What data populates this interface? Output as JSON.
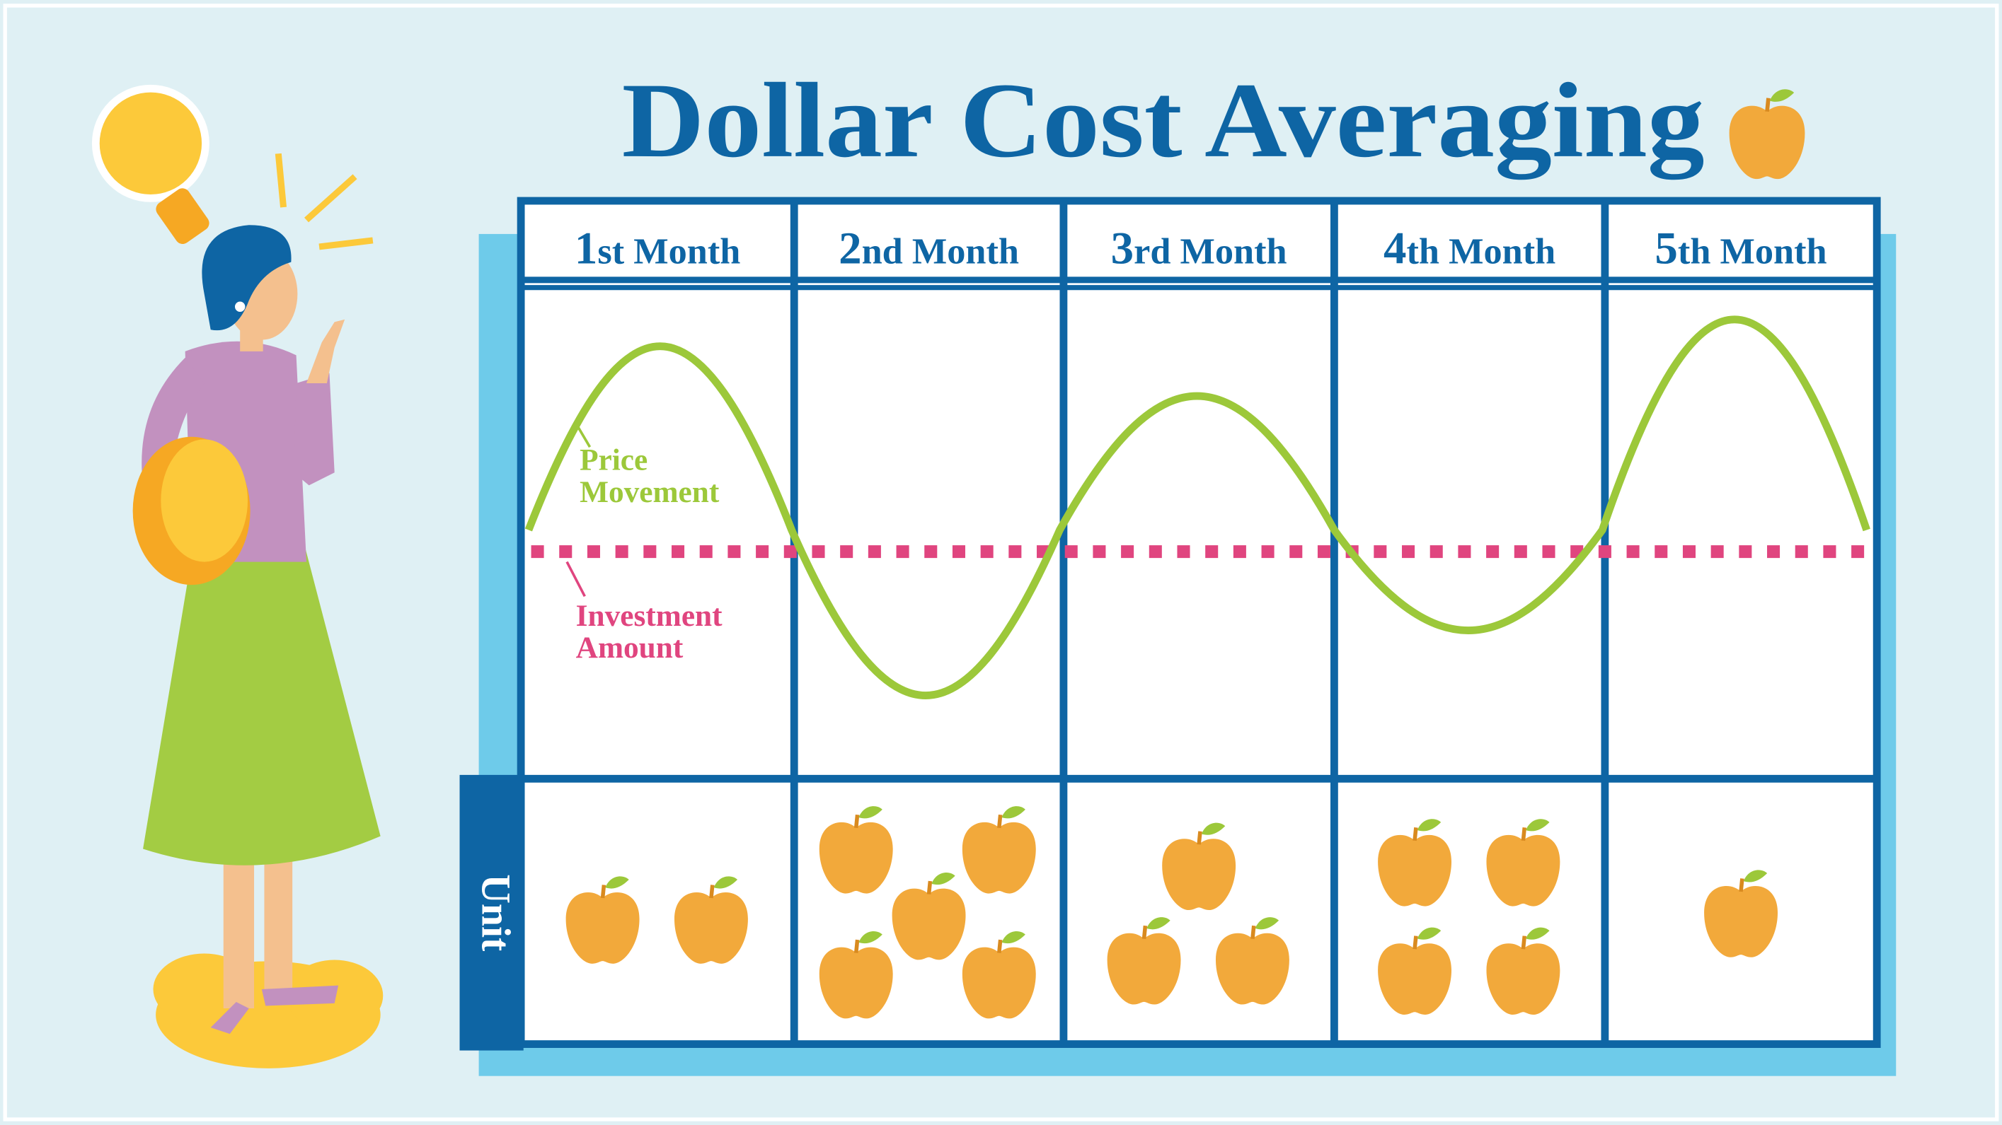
{
  "title": "Dollar Cost Averaging",
  "months": [
    {
      "label": "1st Month",
      "units": 2
    },
    {
      "label": "2nd Month",
      "units": 5
    },
    {
      "label": "3rd Month",
      "units": 3
    },
    {
      "label": "4th Month",
      "units": 4
    },
    {
      "label": "5th Month",
      "units": 1
    }
  ],
  "annotations": {
    "price": [
      "Price",
      "Movement"
    ],
    "investment": [
      "Investment",
      "Amount"
    ]
  },
  "row_label": "Unit"
}
